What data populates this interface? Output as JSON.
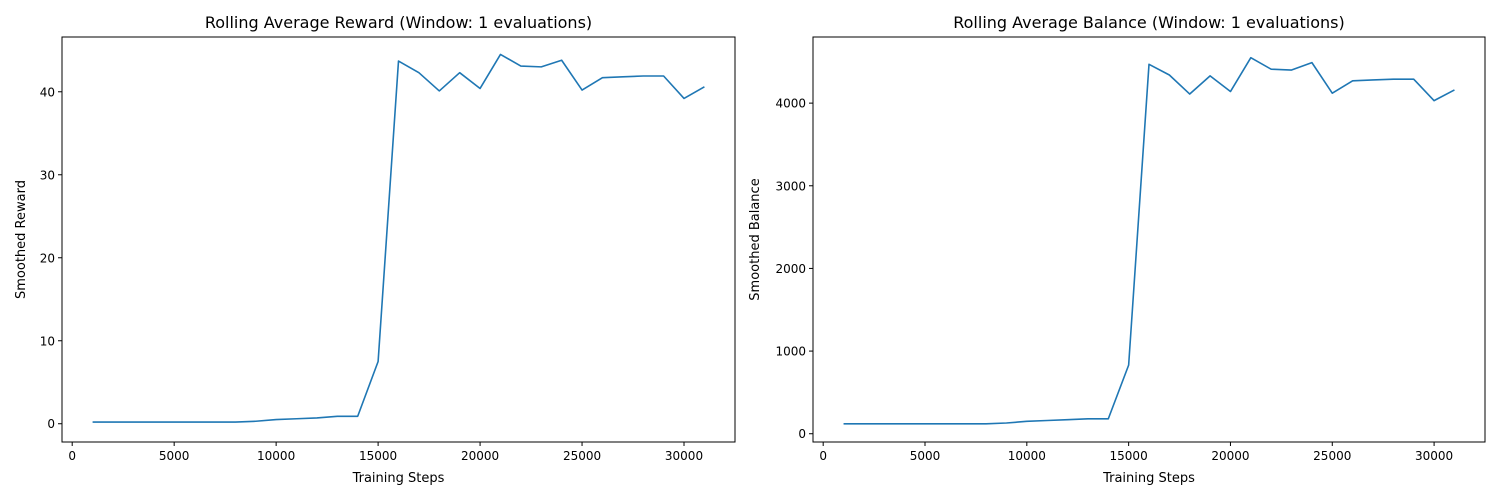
{
  "chart_data": [
    {
      "type": "line",
      "title": "Rolling Average Reward (Window: 1 evaluations)",
      "xlabel": "Training Steps",
      "ylabel": "Smoothed Reward",
      "xlim": [
        -500,
        32500
      ],
      "ylim": [
        -2.2,
        46.6
      ],
      "xticks": [
        0,
        5000,
        10000,
        15000,
        20000,
        25000,
        30000
      ],
      "xtick_labels": [
        "0",
        "5000",
        "10000",
        "15000",
        "20000",
        "25000",
        "30000"
      ],
      "yticks": [
        0,
        10,
        20,
        30,
        40
      ],
      "ytick_labels": [
        "0",
        "10",
        "20",
        "30",
        "40"
      ],
      "grid": false,
      "series": [
        {
          "color": "#1f77b4",
          "x": [
            1000,
            2000,
            3000,
            4000,
            5000,
            6000,
            7000,
            8000,
            9000,
            10000,
            11000,
            12000,
            13000,
            14000,
            15000,
            16000,
            17000,
            18000,
            19000,
            20000,
            21000,
            22000,
            23000,
            24000,
            25000,
            26000,
            27000,
            28000,
            29000,
            30000,
            31000
          ],
          "y": [
            0.2,
            0.2,
            0.2,
            0.2,
            0.2,
            0.2,
            0.2,
            0.2,
            0.3,
            0.5,
            0.6,
            0.7,
            0.9,
            0.9,
            7.5,
            43.7,
            42.3,
            40.1,
            42.3,
            40.4,
            44.5,
            43.1,
            43.0,
            43.8,
            40.2,
            41.7,
            41.8,
            41.9,
            41.9,
            39.2,
            40.6
          ]
        }
      ]
    },
    {
      "type": "line",
      "title": "Rolling Average Balance (Window: 1 evaluations)",
      "xlabel": "Training Steps",
      "ylabel": "Smoothed Balance",
      "xlim": [
        -500,
        32500
      ],
      "ylim": [
        -100,
        4800
      ],
      "xticks": [
        0,
        5000,
        10000,
        15000,
        20000,
        25000,
        30000
      ],
      "xtick_labels": [
        "0",
        "5000",
        "10000",
        "15000",
        "20000",
        "25000",
        "30000"
      ],
      "yticks": [
        0,
        1000,
        2000,
        3000,
        4000
      ],
      "ytick_labels": [
        "0",
        "1000",
        "2000",
        "3000",
        "4000"
      ],
      "grid": false,
      "series": [
        {
          "color": "#1f77b4",
          "x": [
            1000,
            2000,
            3000,
            4000,
            5000,
            6000,
            7000,
            8000,
            9000,
            10000,
            11000,
            12000,
            13000,
            14000,
            15000,
            16000,
            17000,
            18000,
            19000,
            20000,
            21000,
            22000,
            23000,
            24000,
            25000,
            26000,
            27000,
            28000,
            29000,
            30000,
            31000
          ],
          "y": [
            120,
            120,
            120,
            120,
            120,
            120,
            120,
            120,
            130,
            150,
            160,
            170,
            180,
            180,
            830,
            4470,
            4340,
            4110,
            4330,
            4140,
            4550,
            4410,
            4400,
            4490,
            4120,
            4270,
            4280,
            4290,
            4290,
            4030,
            4160
          ]
        }
      ]
    }
  ]
}
